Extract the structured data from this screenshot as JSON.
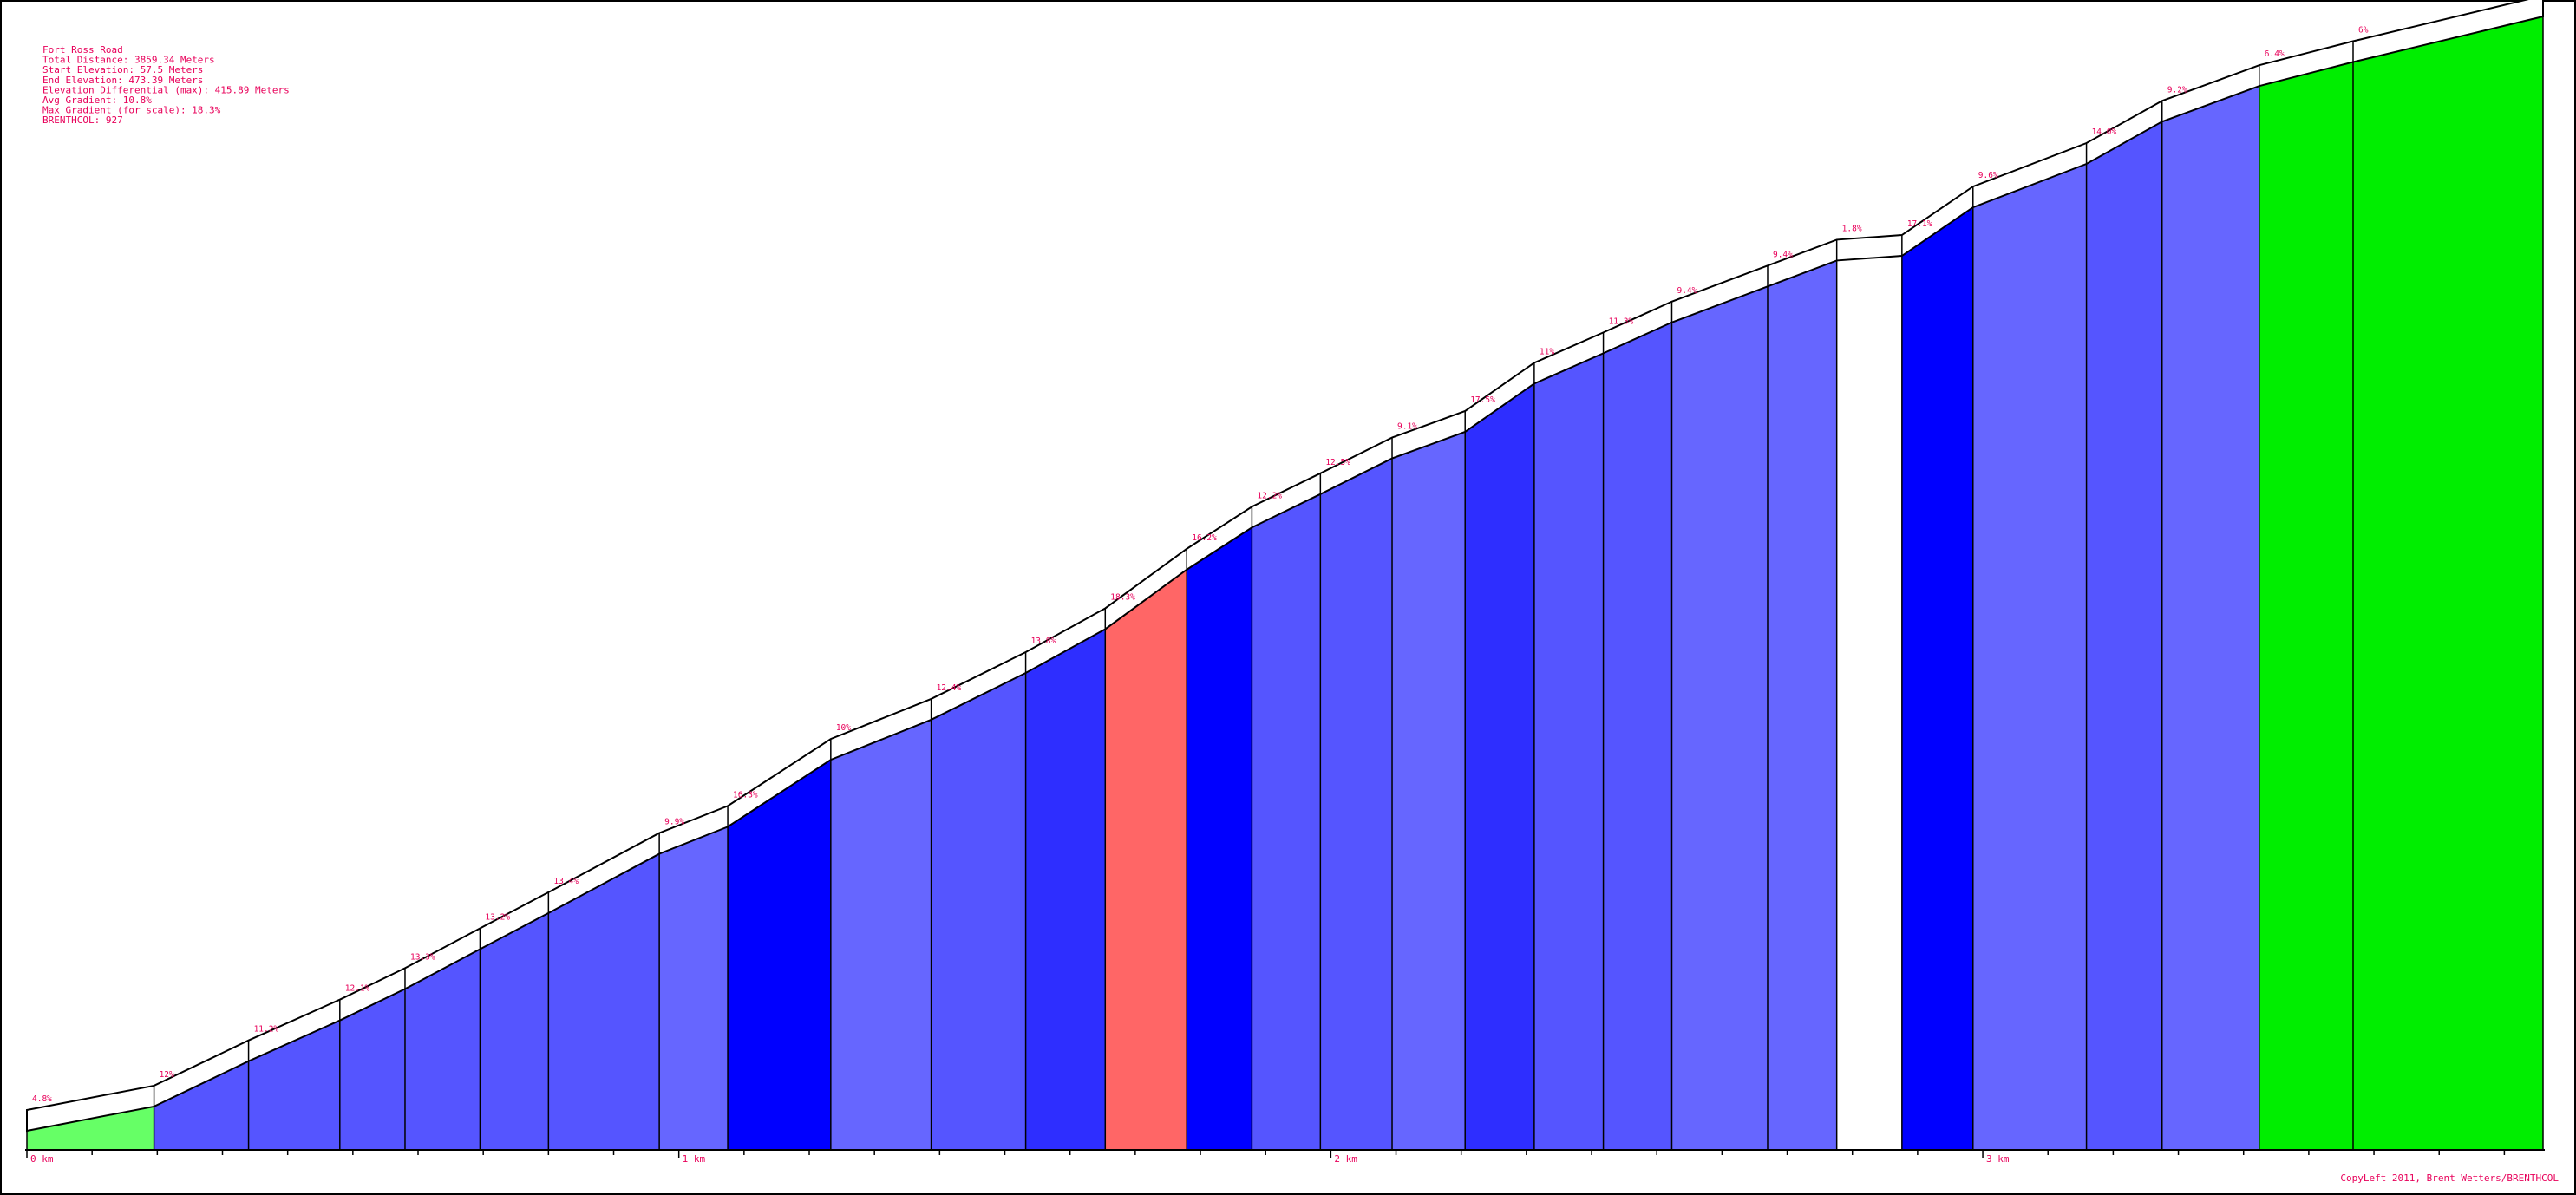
{
  "chart_data": {
    "type": "area",
    "title": "Fort Ross Road",
    "info": [
      "Fort Ross Road",
      "Total Distance: 3859.34 Meters",
      "Start Elevation: 57.5 Meters",
      "End Elevation: 473.39 Meters",
      "Elevation Differential (max): 415.89 Meters",
      "Avg Gradient: 10.8%",
      "Max Gradient (for scale): 18.3%",
      "BRENTHCOL: 927"
    ],
    "x_unit": "m",
    "xlim": [
      0,
      3859.34
    ],
    "ylim_elevation_m": [
      57.5,
      473.39
    ],
    "x_ticks": [
      {
        "value": 0,
        "label": "0 km"
      },
      {
        "value": 1000,
        "label": "1 km"
      },
      {
        "value": 2000,
        "label": "2 km"
      },
      {
        "value": 3000,
        "label": "3 km"
      }
    ],
    "minor_tick_step_m": 100,
    "segments": [
      {
        "start": 0,
        "end": 195,
        "gradient": 4.8,
        "label": "4.8%",
        "color": "#66ff66"
      },
      {
        "start": 195,
        "end": 340,
        "gradient": 12,
        "label": "12%",
        "color": "#5555ff"
      },
      {
        "start": 340,
        "end": 480,
        "gradient": 11.2,
        "label": "11.2%",
        "color": "#5555ff"
      },
      {
        "start": 480,
        "end": 580,
        "gradient": 12.1,
        "label": "12.1%",
        "color": "#5555ff"
      },
      {
        "start": 580,
        "end": 695,
        "gradient": 13.3,
        "label": "13.3%",
        "color": "#5555ff"
      },
      {
        "start": 695,
        "end": 800,
        "gradient": 13.2,
        "label": "13.2%",
        "color": "#5555ff"
      },
      {
        "start": 800,
        "end": 970,
        "gradient": 13.4,
        "label": "13.4%",
        "color": "#5555ff"
      },
      {
        "start": 970,
        "end": 1075,
        "gradient": 9.9,
        "label": "9.9%",
        "color": "#6666ff"
      },
      {
        "start": 1075,
        "end": 1233,
        "gradient": 16.3,
        "label": "16.3%",
        "color": "#0000ff"
      },
      {
        "start": 1233,
        "end": 1387,
        "gradient": 10,
        "label": "10%",
        "color": "#6666ff"
      },
      {
        "start": 1387,
        "end": 1532,
        "gradient": 12.4,
        "label": "12.4%",
        "color": "#5555ff"
      },
      {
        "start": 1532,
        "end": 1654,
        "gradient": 13.8,
        "label": "13.8%",
        "color": "#2e2eff"
      },
      {
        "start": 1654,
        "end": 1779,
        "gradient": 18.3,
        "label": "18.3%",
        "color": "#ff6666"
      },
      {
        "start": 1779,
        "end": 1879,
        "gradient": 16.2,
        "label": "16.2%",
        "color": "#0000ff"
      },
      {
        "start": 1879,
        "end": 1984,
        "gradient": 12.2,
        "label": "12.2%",
        "color": "#5555ff"
      },
      {
        "start": 1984,
        "end": 2094,
        "gradient": 12.5,
        "label": "12.5%",
        "color": "#5555ff"
      },
      {
        "start": 2094,
        "end": 2206,
        "gradient": 9.1,
        "label": "9.1%",
        "color": "#6666ff"
      },
      {
        "start": 2206,
        "end": 2312,
        "gradient": 17.5,
        "label": "17.5%",
        "color": "#2e2eff"
      },
      {
        "start": 2312,
        "end": 2418,
        "gradient": 11,
        "label": "11%",
        "color": "#5555ff"
      },
      {
        "start": 2418,
        "end": 2523,
        "gradient": 11.3,
        "label": "11.3%",
        "color": "#5555ff"
      },
      {
        "start": 2523,
        "end": 2670,
        "gradient": 9.4,
        "label": "9.4%",
        "color": "#6666ff"
      },
      {
        "start": 2670,
        "end": 2776,
        "gradient": 9.4,
        "label": "9.4%",
        "color": "#6666ff"
      },
      {
        "start": 2776,
        "end": 2876,
        "gradient": 1.8,
        "label": "1.8%",
        "color": "#ffffff"
      },
      {
        "start": 2876,
        "end": 2985,
        "gradient": 17.1,
        "label": "17.1%",
        "color": "#0000ff"
      },
      {
        "start": 2985,
        "end": 3159,
        "gradient": 9.6,
        "label": "9.6%",
        "color": "#6666ff"
      },
      {
        "start": 3159,
        "end": 3275,
        "gradient": 14.0,
        "label": "14.0%",
        "color": "#5555ff"
      },
      {
        "start": 3275,
        "end": 3424,
        "gradient": 9.2,
        "label": "9.2%",
        "color": "#6666ff"
      },
      {
        "start": 3424,
        "end": 3568,
        "gradient": 6.4,
        "label": "6.4%",
        "color": "#00ee00"
      },
      {
        "start": 3568,
        "end": 3859.34,
        "gradient": 6,
        "label": "6%",
        "color": "#00ee00"
      }
    ],
    "copyright": "CopyLeft 2011, Brent Wetters/BRENTHCOL"
  }
}
